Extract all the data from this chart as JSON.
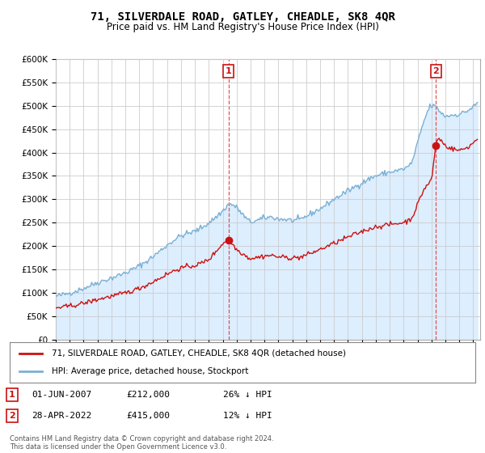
{
  "title": "71, SILVERDALE ROAD, GATLEY, CHEADLE, SK8 4QR",
  "subtitle": "Price paid vs. HM Land Registry's House Price Index (HPI)",
  "ylim": [
    0,
    600000
  ],
  "yticks": [
    0,
    50000,
    100000,
    150000,
    200000,
    250000,
    300000,
    350000,
    400000,
    450000,
    500000,
    550000,
    600000
  ],
  "ytick_labels": [
    "£0",
    "£50K",
    "£100K",
    "£150K",
    "£200K",
    "£250K",
    "£300K",
    "£350K",
    "£400K",
    "£450K",
    "£500K",
    "£550K",
    "£600K"
  ],
  "hpi_color": "#7ab0d4",
  "hpi_fill_color": "#ddeeff",
  "price_color": "#cc1111",
  "marker_color": "#cc1111",
  "background_color": "#ffffff",
  "grid_color": "#cccccc",
  "legend_label_red": "71, SILVERDALE ROAD, GATLEY, CHEADLE, SK8 4QR (detached house)",
  "legend_label_blue": "HPI: Average price, detached house, Stockport",
  "annotation1_date": "01-JUN-2007",
  "annotation1_price": "£212,000",
  "annotation1_pct": "26% ↓ HPI",
  "annotation2_date": "28-APR-2022",
  "annotation2_price": "£415,000",
  "annotation2_pct": "12% ↓ HPI",
  "footer": "Contains HM Land Registry data © Crown copyright and database right 2024.\nThis data is licensed under the Open Government Licence v3.0.",
  "sale1_x": 2007.42,
  "sale1_y": 212000,
  "sale2_x": 2022.32,
  "sale2_y": 415000,
  "vline1_x": 2007.42,
  "vline2_x": 2022.32,
  "xlim_start": 1995.0,
  "xlim_end": 2025.5
}
